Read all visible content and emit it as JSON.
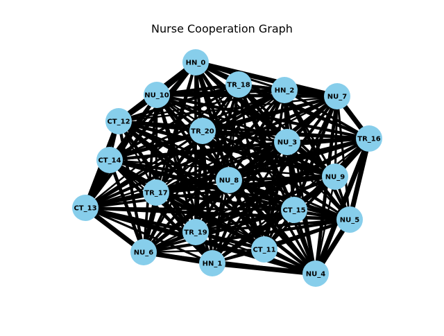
{
  "title": "Nurse Cooperation Graph",
  "colors": {
    "node": "#87ceeb",
    "edge": "#000000",
    "background": "#ffffff"
  },
  "nodes": [
    "HN_0",
    "HN_1",
    "HN_2",
    "NU_3",
    "NU_4",
    "NU_5",
    "NU_6",
    "NU_7",
    "NU_8",
    "NU_9",
    "NU_10",
    "CT_11",
    "CT_12",
    "CT_13",
    "CT_14",
    "CT_15",
    "TR_16",
    "TR_17",
    "TR_18",
    "TR_19",
    "TR_20"
  ],
  "edges": "complete"
}
